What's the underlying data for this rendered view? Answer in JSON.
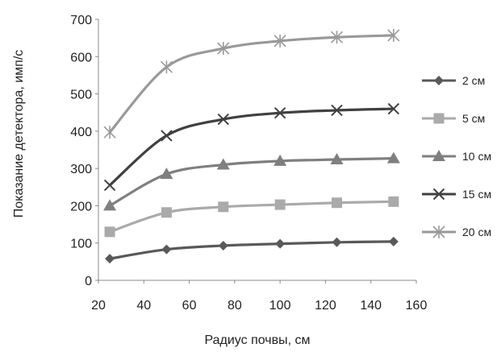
{
  "chart_data": {
    "type": "line",
    "title": "",
    "xlabel": "Радиус почвы, см",
    "ylabel": "Показание  детектора, имп/с",
    "xlim": [
      20,
      160
    ],
    "ylim": [
      0,
      700
    ],
    "x_ticks": [
      "20",
      "40",
      "60",
      "80",
      "100",
      "120",
      "140",
      "160"
    ],
    "y_ticks": [
      "0",
      "100",
      "200",
      "300",
      "400",
      "500",
      "600",
      "700"
    ],
    "grid": false,
    "legend_position": "right",
    "x": [
      25,
      50,
      75,
      100,
      125,
      150
    ],
    "series": [
      {
        "name": "2 см",
        "values": [
          58,
          83,
          93,
          98,
          102,
          104
        ],
        "color": "#595959",
        "marker": "diamond"
      },
      {
        "name": "5 см",
        "values": [
          130,
          182,
          197,
          203,
          208,
          211
        ],
        "color": "#aaaaaa",
        "marker": "square"
      },
      {
        "name": "10 см",
        "values": [
          200,
          285,
          310,
          320,
          324,
          327
        ],
        "color": "#7f7f7f",
        "marker": "triangle"
      },
      {
        "name": "15 см",
        "values": [
          255,
          388,
          432,
          449,
          456,
          460
        ],
        "color": "#404040",
        "marker": "x"
      },
      {
        "name": "20 см",
        "values": [
          397,
          572,
          622,
          642,
          652,
          657
        ],
        "color": "#999999",
        "marker": "star"
      }
    ]
  }
}
